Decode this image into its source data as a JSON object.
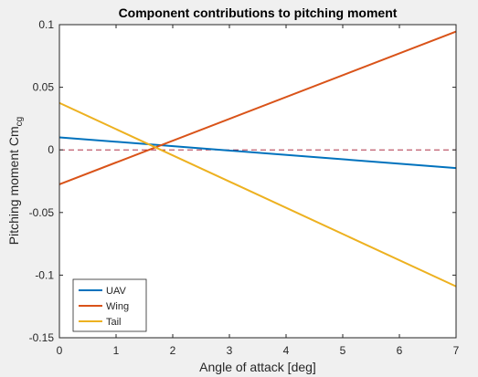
{
  "chart_data": {
    "type": "line",
    "title": "Component contributions to pitching moment",
    "xlabel": "Angle of attack [deg]",
    "ylabel_main": "Pitching moment Cm",
    "ylabel_sub": "cg",
    "xlim": [
      0,
      7
    ],
    "ylim": [
      -0.15,
      0.1
    ],
    "xticks": [
      0,
      1,
      2,
      3,
      4,
      5,
      6,
      7
    ],
    "xtick_labels": [
      "0",
      "1",
      "2",
      "3",
      "4",
      "5",
      "6",
      "7"
    ],
    "yticks": [
      -0.15,
      -0.1,
      -0.05,
      0,
      0.05,
      0.1
    ],
    "ytick_labels": [
      "-0.15",
      "-0.1",
      "-0.05",
      "0",
      "0.05",
      "0.1"
    ],
    "x": [
      0,
      7
    ],
    "series": [
      {
        "name": "UAV",
        "values": [
          0.01,
          -0.0145
        ],
        "color": "#0072bd"
      },
      {
        "name": "Wing",
        "values": [
          -0.0275,
          0.0945
        ],
        "color": "#d95319"
      },
      {
        "name": "Tail",
        "values": [
          0.0375,
          -0.109
        ],
        "color": "#edb120"
      }
    ],
    "reference_line": {
      "y": 0,
      "style": "dashed",
      "color": "#a2142f"
    },
    "legend_position": "bottom-left",
    "grid": false
  }
}
